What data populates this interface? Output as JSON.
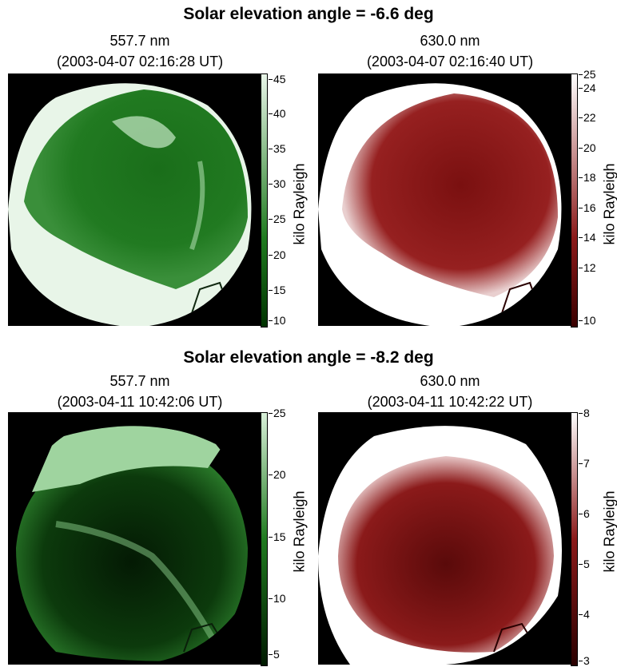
{
  "rows": [
    {
      "title": "Solar elevation angle = -6.6 deg",
      "panels": [
        {
          "wavelength": "557.7 nm",
          "timestamp": "(2003-04-07 02:16:28 UT)",
          "colorbar": {
            "label": "kilo Rayleigh",
            "ticks": [
              "45",
              "40",
              "35",
              "30",
              "25",
              "20",
              "15",
              "10"
            ],
            "color_low": "#003300",
            "color_high": "#e9f6e9"
          }
        },
        {
          "wavelength": "630.0 nm",
          "timestamp": "(2003-04-07 02:16:40 UT)",
          "colorbar": {
            "label": "kilo Rayleigh",
            "ticks": [
              "25",
              "24",
              "22",
              "20",
              "18",
              "16",
              "14",
              "12",
              "10"
            ],
            "color_low": "#3a0000",
            "color_high": "#ffffff"
          }
        }
      ]
    },
    {
      "title": "Solar elevation angle = -8.2 deg",
      "panels": [
        {
          "wavelength": "557.7 nm",
          "timestamp": "(2003-04-11 10:42:06 UT)",
          "colorbar": {
            "label": "kilo Rayleigh",
            "ticks": [
              "25",
              "20",
              "15",
              "10",
              "5"
            ],
            "color_low": "#001a00",
            "color_high": "#d9f0d9"
          }
        },
        {
          "wavelength": "630.0 nm",
          "timestamp": "(2003-04-11 10:42:22 UT)",
          "colorbar": {
            "label": "kilo Rayleigh",
            "ticks": [
              "8",
              "7",
              "6",
              "5",
              "4",
              "3"
            ],
            "color_low": "#2a0000",
            "color_high": "#ffffff"
          }
        }
      ]
    }
  ],
  "colors": {
    "green": "#1f7a1f",
    "green_light": "#e6f5e6",
    "red": "#8b1a1a",
    "red_light": "#ffffff"
  }
}
